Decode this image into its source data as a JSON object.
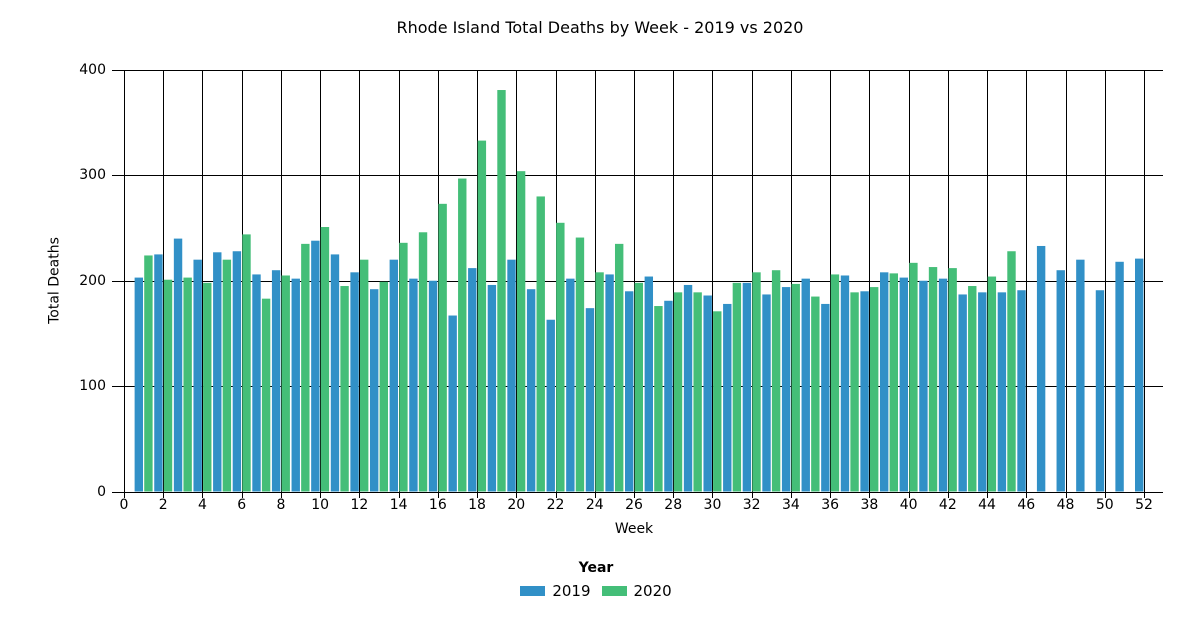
{
  "title": "Rhode Island Total Deaths by Week - 2019 vs 2020",
  "colors": {
    "year2019": "#3190C7",
    "year2020": "#44BE78",
    "grid": "#000000",
    "background": "#ffffff"
  },
  "legend": {
    "title": "Year",
    "items": [
      {
        "label": "2019",
        "color": "#3190C7"
      },
      {
        "label": "2020",
        "color": "#44BE78"
      }
    ]
  },
  "chart_data": {
    "type": "bar",
    "title": "Rhode Island Total Deaths by Week - 2019 vs 2020",
    "xlabel": "Week",
    "ylabel": "Total Deaths",
    "ylim": [
      0,
      400
    ],
    "yticks": [
      0,
      100,
      200,
      300,
      400
    ],
    "xticks": [
      0,
      2,
      4,
      6,
      8,
      10,
      12,
      14,
      16,
      18,
      20,
      22,
      24,
      26,
      28,
      30,
      32,
      34,
      36,
      38,
      40,
      42,
      44,
      46,
      48,
      50,
      52
    ],
    "grid": "both-black-mirrored-ticks",
    "legend_position": "bottom",
    "categories": [
      1,
      2,
      3,
      4,
      5,
      6,
      7,
      8,
      9,
      10,
      11,
      12,
      13,
      14,
      15,
      16,
      17,
      18,
      19,
      20,
      21,
      22,
      23,
      24,
      25,
      26,
      27,
      28,
      29,
      30,
      31,
      32,
      33,
      34,
      35,
      36,
      37,
      38,
      39,
      40,
      41,
      42,
      43,
      44,
      45,
      46,
      47,
      48,
      49,
      50,
      51,
      52
    ],
    "series": [
      {
        "name": "2019",
        "color": "#3190C7",
        "values": [
          203,
          225,
          240,
          220,
          227,
          228,
          206,
          210,
          202,
          238,
          225,
          208,
          192,
          220,
          202,
          200,
          167,
          212,
          196,
          220,
          192,
          163,
          202,
          174,
          206,
          190,
          204,
          181,
          196,
          186,
          178,
          198,
          187,
          194,
          202,
          178,
          205,
          190,
          208,
          203,
          200,
          202,
          187,
          189,
          189,
          191,
          233,
          210,
          220,
          191,
          218,
          221
        ]
      },
      {
        "name": "2020",
        "color": "#44BE78",
        "values": [
          224,
          201,
          203,
          198,
          220,
          244,
          183,
          205,
          235,
          251,
          195,
          220,
          199,
          236,
          246,
          273,
          297,
          333,
          381,
          304,
          280,
          255,
          241,
          208,
          235,
          198,
          176,
          189,
          189,
          171,
          198,
          208,
          210,
          197,
          185,
          206,
          189,
          194,
          207,
          217,
          213,
          212,
          195,
          204,
          228,
          null,
          null,
          null,
          null,
          null,
          null,
          null
        ]
      }
    ]
  }
}
